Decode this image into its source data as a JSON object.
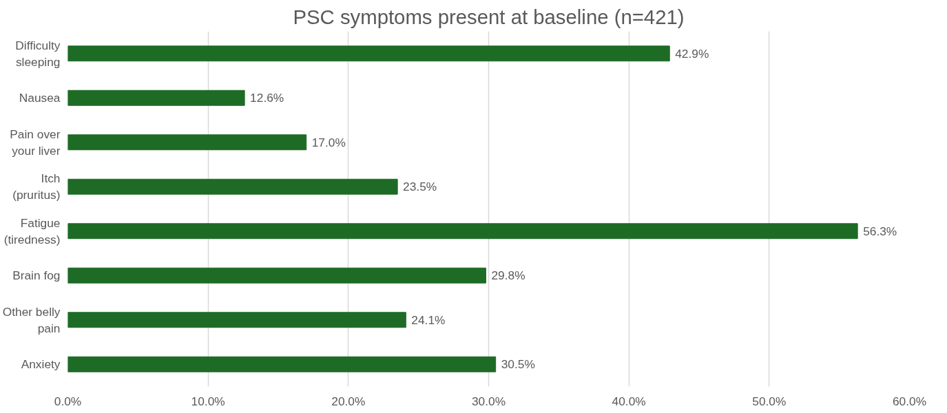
{
  "chart_data": {
    "type": "bar",
    "orientation": "horizontal",
    "title": "PSC symptoms present at baseline (n=421)",
    "categories": [
      "Difficulty sleeping",
      "Nausea",
      "Pain over your liver",
      "Itch (pruritus)",
      "Fatigue (tiredness)",
      "Brain fog",
      "Other belly pain",
      "Anxiety"
    ],
    "values": [
      42.9,
      12.6,
      17.0,
      23.5,
      56.3,
      29.8,
      24.1,
      30.5
    ],
    "value_labels": [
      "42.9%",
      "12.6%",
      "17.0%",
      "23.5%",
      "56.3%",
      "29.8%",
      "24.1%",
      "30.5%"
    ],
    "color": "#1e6b26",
    "xlim": [
      0,
      60
    ],
    "xticks": [
      {
        "value": 0,
        "label": "0.0%"
      },
      {
        "value": 10,
        "label": "10.0%"
      },
      {
        "value": 20,
        "label": "20.0%"
      },
      {
        "value": 30,
        "label": "30.0%"
      },
      {
        "value": 40,
        "label": "40.0%"
      },
      {
        "value": 50,
        "label": "50.0%"
      },
      {
        "value": 60,
        "label": "60.0%"
      }
    ],
    "grid": "x"
  }
}
